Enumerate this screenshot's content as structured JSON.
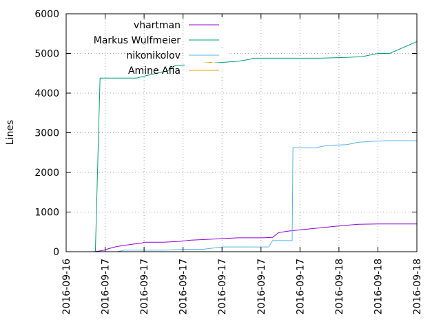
{
  "chart_data": {
    "type": "line",
    "title": "",
    "xlabel": "",
    "ylabel": "Lines",
    "ylim": [
      0,
      6000
    ],
    "yticks": [
      0,
      1000,
      2000,
      3000,
      4000,
      5000,
      6000
    ],
    "xticks": [
      "2016-09-16",
      "2016-09-17",
      "2016-09-17",
      "2016-09-17",
      "2016-09-17",
      "2016-09-17",
      "2016-09-17",
      "2016-09-18",
      "2016-09-18",
      "2016-09-18"
    ],
    "grid": true,
    "legend": "top-left",
    "series": [
      {
        "name": "vhartman",
        "color": "#9400d3",
        "points": [
          [
            0.7,
            0
          ],
          [
            0.8,
            10
          ],
          [
            0.95,
            30
          ],
          [
            1.1,
            80
          ],
          [
            1.3,
            130
          ],
          [
            1.5,
            160
          ],
          [
            1.7,
            190
          ],
          [
            1.95,
            220
          ],
          [
            2,
            240
          ],
          [
            2.5,
            240
          ],
          [
            2.9,
            260
          ],
          [
            3.2,
            290
          ],
          [
            3.6,
            310
          ],
          [
            4,
            330
          ],
          [
            4.4,
            350
          ],
          [
            5,
            350
          ],
          [
            5.3,
            360
          ],
          [
            5.45,
            480
          ],
          [
            5.7,
            520
          ],
          [
            6,
            550
          ],
          [
            6.2,
            570
          ],
          [
            6.5,
            600
          ],
          [
            6.8,
            630
          ],
          [
            7.1,
            660
          ],
          [
            7.5,
            690
          ],
          [
            8,
            700
          ],
          [
            8.5,
            700
          ],
          [
            9,
            700
          ]
        ]
      },
      {
        "name": "Markus Wulfmeier",
        "color": "#009e73",
        "points": [
          [
            0.75,
            0
          ],
          [
            0.87,
            4380
          ],
          [
            1.8,
            4380
          ],
          [
            2.1,
            4450
          ],
          [
            2.6,
            4560
          ],
          [
            2.8,
            4700
          ],
          [
            3.3,
            4720
          ],
          [
            3.8,
            4760
          ],
          [
            4.4,
            4800
          ],
          [
            4.7,
            4850
          ],
          [
            4.8,
            4880
          ],
          [
            5.5,
            4880
          ],
          [
            6.5,
            4880
          ],
          [
            7.2,
            4900
          ],
          [
            7.6,
            4920
          ],
          [
            8,
            5000
          ],
          [
            8.3,
            5000
          ],
          [
            9,
            5300
          ]
        ]
      },
      {
        "name": "nikonikolov",
        "color": "#56b4e9",
        "points": [
          [
            1.3,
            0
          ],
          [
            1.5,
            40
          ],
          [
            2.5,
            40
          ],
          [
            3,
            60
          ],
          [
            3.5,
            60
          ],
          [
            4,
            120
          ],
          [
            4.5,
            120
          ],
          [
            5,
            120
          ],
          [
            5.2,
            120
          ],
          [
            5.3,
            280
          ],
          [
            5.5,
            280
          ],
          [
            5.8,
            280
          ],
          [
            5.82,
            2620
          ],
          [
            6.4,
            2620
          ],
          [
            6.7,
            2680
          ],
          [
            7.2,
            2700
          ],
          [
            7.5,
            2760
          ],
          [
            7.8,
            2780
          ],
          [
            8.2,
            2800
          ],
          [
            9,
            2800
          ]
        ]
      },
      {
        "name": "Amine Afia",
        "color": "#e69f00",
        "points": [
          [
            3.35,
            4740
          ],
          [
            3.55,
            4760
          ],
          [
            3.75,
            4780
          ]
        ]
      }
    ]
  }
}
